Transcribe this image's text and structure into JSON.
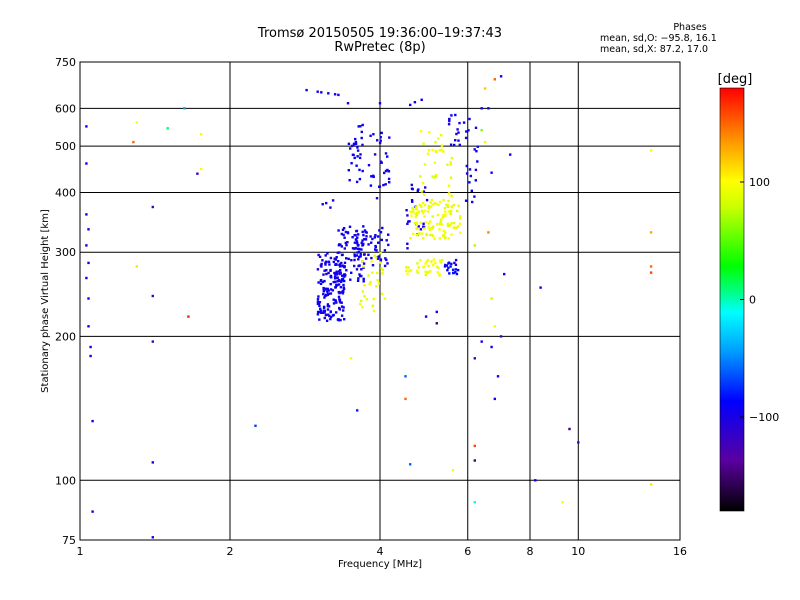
{
  "chart_data": {
    "type": "scatter",
    "title": "Tromsø 20150505 19:36:00–19:37:43",
    "subtitle": "RwPretec (8p)",
    "xlabel": "Frequency [MHz]",
    "ylabel": "Stationary phase Virtual Height [km]",
    "xscale": "log",
    "yscale": "log",
    "xlim": [
      1,
      16
    ],
    "ylim": [
      75,
      750
    ],
    "xticks": [
      1,
      2,
      4,
      6,
      8,
      10,
      16
    ],
    "xtick_labels": [
      "1",
      "2",
      "4",
      "6",
      "8",
      "10",
      "16"
    ],
    "yticks": [
      75,
      100,
      200,
      300,
      400,
      500,
      600,
      750
    ],
    "ytick_labels": [
      "75",
      "100",
      "200",
      "300",
      "400",
      "500",
      "600",
      "750"
    ],
    "grid": true,
    "colorbar": {
      "label": "[deg]",
      "range": [
        -180,
        180
      ],
      "ticks": [
        -100,
        0,
        100
      ],
      "tick_labels": [
        "−100",
        "0",
        "100"
      ]
    },
    "phase_stats": {
      "header": "Phases",
      "line_o": "mean, sd,O: −95.8, 16.1",
      "line_x": "mean, sd,X:  87.2, 17.0"
    },
    "clusters": [
      {
        "x": [
          3.0,
          3.4
        ],
        "y": [
          215,
          300
        ],
        "phase": -95,
        "n": 170
      },
      {
        "x": [
          3.25,
          3.75
        ],
        "y": [
          260,
          340
        ],
        "phase": -95,
        "n": 70
      },
      {
        "x": [
          3.55,
          4.2
        ],
        "y": [
          280,
          340
        ],
        "phase": -95,
        "n": 60
      },
      {
        "x": [
          3.45,
          3.7
        ],
        "y": [
          420,
          560
        ],
        "phase": -95,
        "n": 30
      },
      {
        "x": [
          3.8,
          4.2
        ],
        "y": [
          380,
          540
        ],
        "phase": -95,
        "n": 30
      },
      {
        "x": [
          4.5,
          5.0
        ],
        "y": [
          300,
          420
        ],
        "phase": -95,
        "n": 25
      },
      {
        "x": [
          5.4,
          5.75
        ],
        "y": [
          270,
          290
        ],
        "phase": -90,
        "n": 20
      },
      {
        "x": [
          5.5,
          5.8
        ],
        "y": [
          500,
          590
        ],
        "phase": -95,
        "n": 15
      },
      {
        "x": [
          5.9,
          6.3
        ],
        "y": [
          380,
          550
        ],
        "phase": -95,
        "n": 20
      },
      {
        "x": [
          4.6,
          5.8
        ],
        "y": [
          320,
          380
        ],
        "phase": 95,
        "n": 110
      },
      {
        "x": [
          4.8,
          5.6
        ],
        "y": [
          380,
          540
        ],
        "phase": 95,
        "n": 40
      },
      {
        "x": [
          4.5,
          5.4
        ],
        "y": [
          268,
          290
        ],
        "phase": 95,
        "n": 35
      },
      {
        "x": [
          3.65,
          4.1
        ],
        "y": [
          225,
          300
        ],
        "phase": 95,
        "n": 30
      }
    ],
    "points": [
      {
        "x": 2.85,
        "y": 655,
        "phase": -95
      },
      {
        "x": 3.0,
        "y": 650,
        "phase": -95
      },
      {
        "x": 3.15,
        "y": 645,
        "phase": -95
      },
      {
        "x": 3.3,
        "y": 640,
        "phase": -95
      },
      {
        "x": 3.05,
        "y": 648,
        "phase": -95
      },
      {
        "x": 3.25,
        "y": 642,
        "phase": -95
      },
      {
        "x": 3.12,
        "y": 380,
        "phase": -95
      },
      {
        "x": 3.18,
        "y": 372,
        "phase": -95
      },
      {
        "x": 3.22,
        "y": 385,
        "phase": -95
      },
      {
        "x": 3.07,
        "y": 378,
        "phase": -95
      },
      {
        "x": 3.45,
        "y": 615,
        "phase": -95
      },
      {
        "x": 4.0,
        "y": 615,
        "phase": -95
      },
      {
        "x": 4.6,
        "y": 610,
        "phase": -95
      },
      {
        "x": 4.7,
        "y": 618,
        "phase": -95
      },
      {
        "x": 4.85,
        "y": 625,
        "phase": -95
      },
      {
        "x": 5.9,
        "y": 560,
        "phase": -95
      },
      {
        "x": 6.05,
        "y": 570,
        "phase": -95
      },
      {
        "x": 6.4,
        "y": 600,
        "phase": -95
      },
      {
        "x": 6.6,
        "y": 600,
        "phase": -95
      },
      {
        "x": 7.0,
        "y": 700,
        "phase": -95
      },
      {
        "x": 7.3,
        "y": 480,
        "phase": -95
      },
      {
        "x": 6.7,
        "y": 440,
        "phase": -95
      },
      {
        "x": 7.1,
        "y": 270,
        "phase": -95
      },
      {
        "x": 8.4,
        "y": 253,
        "phase": -95
      },
      {
        "x": 7.0,
        "y": 200,
        "phase": -120
      },
      {
        "x": 5.2,
        "y": 213,
        "phase": -150
      },
      {
        "x": 4.95,
        "y": 220,
        "phase": -95
      },
      {
        "x": 5.2,
        "y": 225,
        "phase": -95
      },
      {
        "x": 6.2,
        "y": 180,
        "phase": -120
      },
      {
        "x": 6.4,
        "y": 195,
        "phase": -95
      },
      {
        "x": 6.7,
        "y": 190,
        "phase": -95
      },
      {
        "x": 6.8,
        "y": 148,
        "phase": -95
      },
      {
        "x": 6.9,
        "y": 165,
        "phase": -95
      },
      {
        "x": 6.2,
        "y": 110,
        "phase": -150
      },
      {
        "x": 4.6,
        "y": 108,
        "phase": -60
      },
      {
        "x": 4.5,
        "y": 165,
        "phase": -60
      },
      {
        "x": 3.6,
        "y": 140,
        "phase": -80
      },
      {
        "x": 8.2,
        "y": 100,
        "phase": -95
      },
      {
        "x": 9.6,
        "y": 128,
        "phase": -150
      },
      {
        "x": 10.0,
        "y": 120,
        "phase": -120
      },
      {
        "x": 1.03,
        "y": 550,
        "phase": -95
      },
      {
        "x": 1.03,
        "y": 460,
        "phase": -95
      },
      {
        "x": 1.03,
        "y": 360,
        "phase": -95
      },
      {
        "x": 1.04,
        "y": 335,
        "phase": -95
      },
      {
        "x": 1.03,
        "y": 310,
        "phase": -95
      },
      {
        "x": 1.04,
        "y": 285,
        "phase": -95
      },
      {
        "x": 1.03,
        "y": 265,
        "phase": -95
      },
      {
        "x": 1.04,
        "y": 240,
        "phase": -95
      },
      {
        "x": 1.04,
        "y": 210,
        "phase": -95
      },
      {
        "x": 1.05,
        "y": 190,
        "phase": -95
      },
      {
        "x": 1.05,
        "y": 182,
        "phase": -95
      },
      {
        "x": 1.06,
        "y": 133,
        "phase": -95
      },
      {
        "x": 1.06,
        "y": 86,
        "phase": -95
      },
      {
        "x": 1.4,
        "y": 373,
        "phase": -120
      },
      {
        "x": 1.4,
        "y": 243,
        "phase": -120
      },
      {
        "x": 1.4,
        "y": 195,
        "phase": -120
      },
      {
        "x": 1.4,
        "y": 109,
        "phase": -100
      },
      {
        "x": 1.4,
        "y": 76,
        "phase": -100
      },
      {
        "x": 1.72,
        "y": 438,
        "phase": -120
      },
      {
        "x": 2.25,
        "y": 130,
        "phase": -70
      },
      {
        "x": 1.5,
        "y": 545,
        "phase": 10
      },
      {
        "x": 1.62,
        "y": 600,
        "phase": -40
      },
      {
        "x": 1.28,
        "y": 510,
        "phase": 150
      },
      {
        "x": 1.3,
        "y": 560,
        "phase": 100
      },
      {
        "x": 1.3,
        "y": 280,
        "phase": 110
      },
      {
        "x": 1.65,
        "y": 220,
        "phase": 170
      },
      {
        "x": 1.75,
        "y": 530,
        "phase": 100
      },
      {
        "x": 1.75,
        "y": 448,
        "phase": 100
      },
      {
        "x": 3.5,
        "y": 180,
        "phase": 100
      },
      {
        "x": 4.5,
        "y": 148,
        "phase": 150
      },
      {
        "x": 5.6,
        "y": 105,
        "phase": 100
      },
      {
        "x": 6.2,
        "y": 118,
        "phase": 160
      },
      {
        "x": 6.2,
        "y": 90,
        "phase": -10
      },
      {
        "x": 6.2,
        "y": 310,
        "phase": 70
      },
      {
        "x": 6.6,
        "y": 330,
        "phase": 140
      },
      {
        "x": 6.8,
        "y": 210,
        "phase": 100
      },
      {
        "x": 6.7,
        "y": 240,
        "phase": 80
      },
      {
        "x": 6.8,
        "y": 690,
        "phase": 150
      },
      {
        "x": 6.5,
        "y": 660,
        "phase": 120
      },
      {
        "x": 6.4,
        "y": 540,
        "phase": 60
      },
      {
        "x": 6.5,
        "y": 510,
        "phase": 90
      },
      {
        "x": 9.3,
        "y": 90,
        "phase": 100
      },
      {
        "x": 14.0,
        "y": 490,
        "phase": 100
      },
      {
        "x": 14.0,
        "y": 330,
        "phase": 130
      },
      {
        "x": 14.0,
        "y": 280,
        "phase": 150
      },
      {
        "x": 14.0,
        "y": 272,
        "phase": 160
      },
      {
        "x": 14.0,
        "y": 98,
        "phase": 110
      }
    ]
  }
}
